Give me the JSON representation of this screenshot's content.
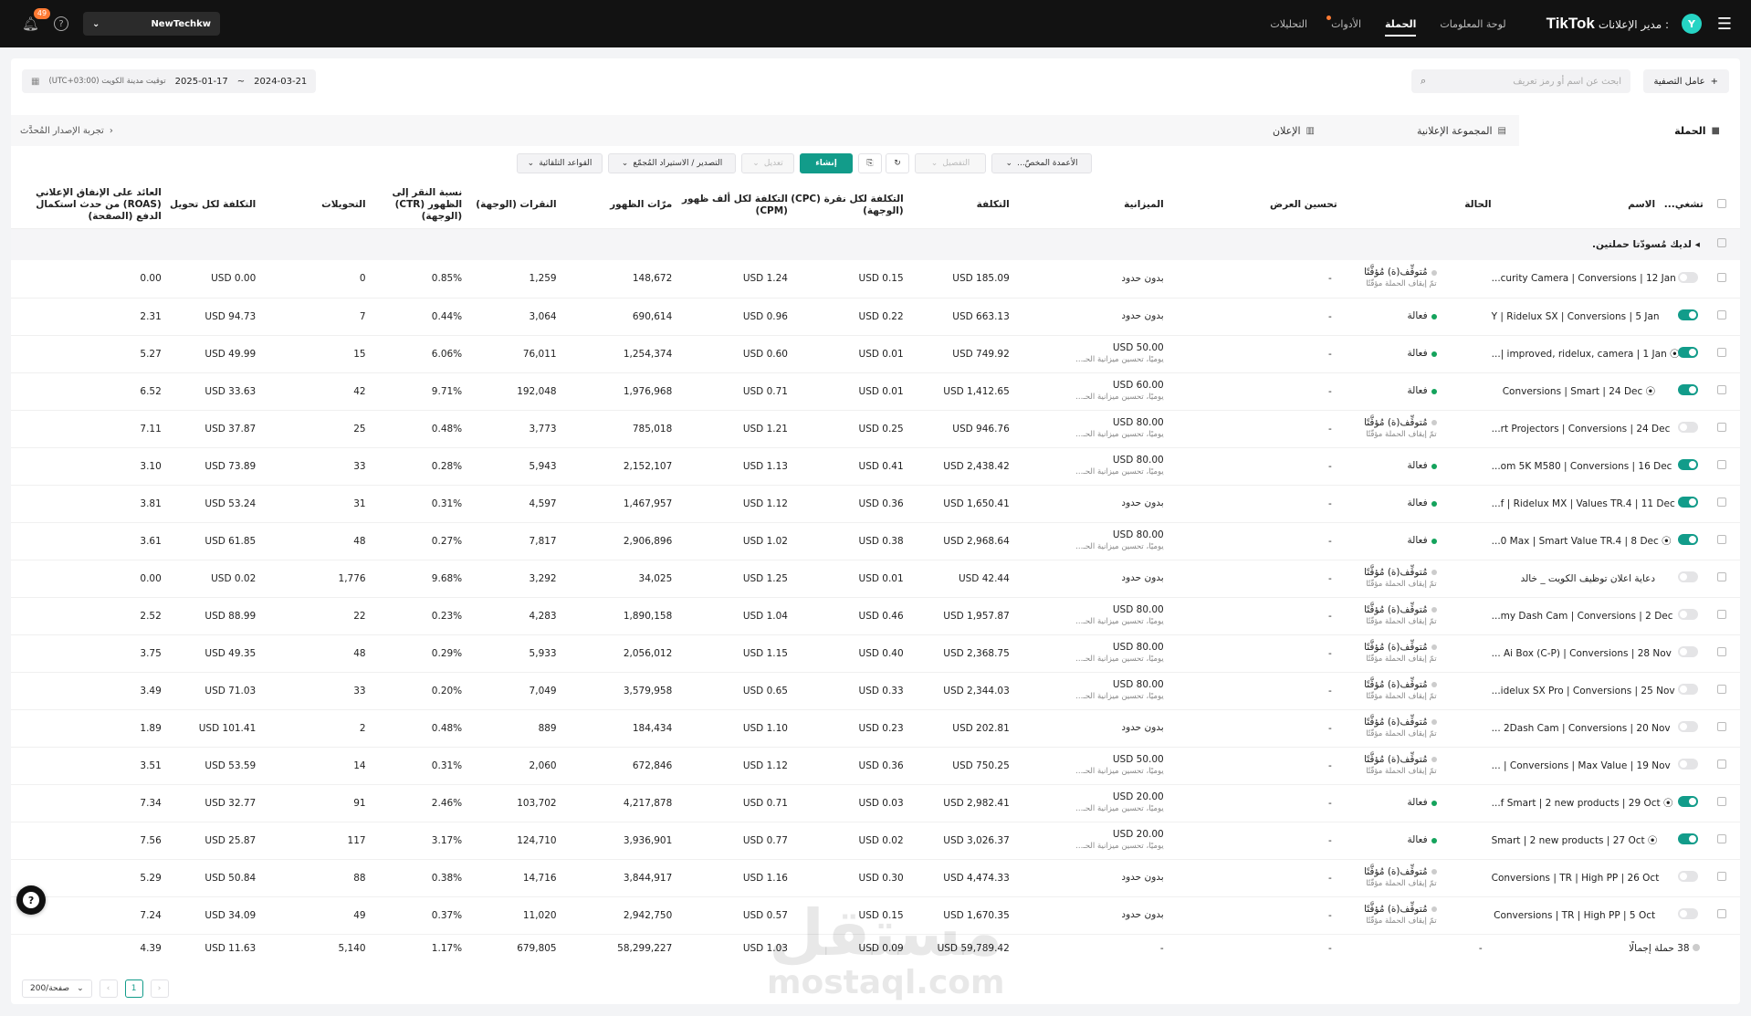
{
  "topbar": {
    "brand": "TikTok",
    "brand_sub": "مدير الإعلانات :",
    "avatar": "Y",
    "nav": [
      "لوحة المعلومات",
      "الحملة",
      "الأدوات",
      "التحليلات"
    ],
    "account": "NewTechkw",
    "notifications": "49"
  },
  "filters": {
    "filter_btn": "عامل التصفية",
    "search_placeholder": "ابحث عن اسم أو رمز تعريف",
    "date_start": "2024-03-21",
    "date_sep": "~",
    "date_end": "2025-01-17",
    "timezone": "(UTC+03:00) توقيت مدينة الكويت"
  },
  "tabs": [
    "الحملة",
    "المجموعة الإعلانية",
    "الإعلان"
  ],
  "version_link": "تجربة الإصدار المُحدَّث",
  "actions": {
    "create": "إنشاء",
    "edit": "تعديل",
    "details": "التفصيل",
    "columns": "الأعمدة المخصّ...",
    "export": "التصدير / الاستيراد المُجمّع",
    "rules": "القواعد التلقائية"
  },
  "columns": [
    "تشغي...",
    "الاسم",
    "الحالة",
    "تحسين العرض",
    "الميزانية",
    "التكلفة",
    "التكلفة لكل نقرة (CPC) (الوجهة)",
    "التكلفة لكل ألف ظهور (CPM)",
    "مرّات الظهور",
    "النقرات (الوجهة)",
    "نسبة النقر إلى الظهور (CTR) (الوجهة)",
    "التحويلات",
    "التكلفة لكل تحويل",
    "العائد على الإنفاق الإعلاني (ROAS) من حدث استكمال الدفع (الصفحة)"
  ],
  "draft_notice": "لديك مُسودّتا حملتين.",
  "status_labels": {
    "active": "فعالة",
    "paused": "مُتوقِّف(ة) مُؤقَّتًا",
    "paused_sub": "تمّ إيقاف الحملة مؤقّتًا"
  },
  "budget_sub": "يوميًا، تحسين ميزانية الحـ...",
  "rows": [
    {
      "name": "...curity Camera | Conversions | 12 Jan",
      "on": false,
      "status": "paused",
      "opt": "-",
      "budget": "بدون حدود",
      "budget_sub": "",
      "cost": "USD 185.09",
      "cpc": "USD 0.15",
      "cpm": "USD 1.24",
      "impr": "148,672",
      "clicks": "1,259",
      "ctr": "0.85%",
      "conv": "0",
      "cpa": "USD 0.00",
      "roas": "0.00"
    },
    {
      "name": "Y | Ridelux SX | Conversions | 5 Jan",
      "on": true,
      "status": "active",
      "opt": "-",
      "budget": "بدون حدود",
      "budget_sub": "",
      "cost": "USD 663.13",
      "cpc": "USD 0.22",
      "cpm": "USD 0.96",
      "impr": "690,614",
      "clicks": "3,064",
      "ctr": "0.44%",
      "conv": "7",
      "cpa": "USD 94.73",
      "roas": "2.31"
    },
    {
      "name": "...| improved, ridelux, camera | 1 Jan ⦿",
      "on": true,
      "status": "active",
      "opt": "-",
      "budget": "USD 50.00",
      "budget_sub": "يوميًا، تحسين ميزانية الحـ...",
      "cost": "USD 749.92",
      "cpc": "USD 0.01",
      "cpm": "USD 0.60",
      "impr": "1,254,374",
      "clicks": "76,011",
      "ctr": "6.06%",
      "conv": "15",
      "cpa": "USD 49.99",
      "roas": "5.27"
    },
    {
      "name": "Conversions | Smart | 24 Dec ⦿",
      "on": true,
      "status": "active",
      "opt": "-",
      "budget": "USD 60.00",
      "budget_sub": "يوميًا، تحسين ميزانية الحـ...",
      "cost": "USD 1,412.65",
      "cpc": "USD 0.01",
      "cpm": "USD 0.71",
      "impr": "1,976,968",
      "clicks": "192,048",
      "ctr": "9.71%",
      "conv": "42",
      "cpa": "USD 33.63",
      "roas": "6.52"
    },
    {
      "name": "...rt Projectors | Conversions | 24 Dec",
      "on": false,
      "status": "paused",
      "opt": "-",
      "budget": "USD 80.00",
      "budget_sub": "يوميًا، تحسين ميزانية الحـ...",
      "cost": "USD 946.76",
      "cpc": "USD 0.25",
      "cpm": "USD 1.21",
      "impr": "785,018",
      "clicks": "3,773",
      "ctr": "0.48%",
      "conv": "25",
      "cpa": "USD 37.87",
      "roas": "7.11"
    },
    {
      "name": "...om 5K M580 | Conversions | 16 Dec",
      "on": true,
      "status": "active",
      "opt": "-",
      "budget": "USD 80.00",
      "budget_sub": "يوميًا، تحسين ميزانية الحـ...",
      "cost": "USD 2,438.42",
      "cpc": "USD 0.41",
      "cpm": "USD 1.13",
      "impr": "2,152,107",
      "clicks": "5,943",
      "ctr": "0.28%",
      "conv": "33",
      "cpa": "USD 73.89",
      "roas": "3.10"
    },
    {
      "name": "...f | Ridelux MX | Values TR.4 | 11 Dec",
      "on": true,
      "status": "active",
      "opt": "-",
      "budget": "بدون حدود",
      "budget_sub": "",
      "cost": "USD 1,650.41",
      "cpc": "USD 0.36",
      "cpm": "USD 1.12",
      "impr": "1,467,957",
      "clicks": "4,597",
      "ctr": "0.31%",
      "conv": "31",
      "cpa": "USD 53.24",
      "roas": "3.81"
    },
    {
      "name": "...0 Max | Smart Value TR.4 | 8 Dec ⦿",
      "on": true,
      "status": "active",
      "opt": "-",
      "budget": "USD 80.00",
      "budget_sub": "يوميًا، تحسين ميزانية الحـ...",
      "cost": "USD 2,968.64",
      "cpc": "USD 0.38",
      "cpm": "USD 1.02",
      "impr": "2,906,896",
      "clicks": "7,817",
      "ctr": "0.27%",
      "conv": "48",
      "cpa": "USD 61.85",
      "roas": "3.61"
    },
    {
      "name": "دعاية اعلان توظيف الكويت _ خالد",
      "ar": true,
      "on": false,
      "status": "paused",
      "opt": "-",
      "budget": "بدون حدود",
      "budget_sub": "",
      "cost": "USD 42.44",
      "cpc": "USD 0.01",
      "cpm": "USD 1.25",
      "impr": "34,025",
      "clicks": "3,292",
      "ctr": "9.68%",
      "conv": "1,776",
      "cpa": "USD 0.02",
      "roas": "0.00"
    },
    {
      "name": "...my Dash Cam | Conversions | 2 Dec",
      "on": false,
      "status": "paused",
      "opt": "-",
      "budget": "USD 80.00",
      "budget_sub": "يوميًا، تحسين ميزانية الحـ...",
      "cost": "USD 1,957.87",
      "cpc": "USD 0.46",
      "cpm": "USD 1.04",
      "impr": "1,890,158",
      "clicks": "4,283",
      "ctr": "0.23%",
      "conv": "22",
      "cpa": "USD 88.99",
      "roas": "2.52"
    },
    {
      "name": "... Ai Box (C-P) | Conversions | 28 Nov",
      "on": false,
      "status": "paused",
      "opt": "-",
      "budget": "USD 80.00",
      "budget_sub": "يوميًا، تحسين ميزانية الحـ...",
      "cost": "USD 2,368.75",
      "cpc": "USD 0.40",
      "cpm": "USD 1.15",
      "impr": "2,056,012",
      "clicks": "5,933",
      "ctr": "0.29%",
      "conv": "48",
      "cpa": "USD 49.35",
      "roas": "3.75"
    },
    {
      "name": "...idelux SX Pro | Conversions | 25 Nov",
      "on": false,
      "status": "paused",
      "opt": "-",
      "budget": "USD 80.00",
      "budget_sub": "يوميًا، تحسين ميزانية الحـ...",
      "cost": "USD 2,344.03",
      "cpc": "USD 0.33",
      "cpm": "USD 0.65",
      "impr": "3,579,958",
      "clicks": "7,049",
      "ctr": "0.20%",
      "conv": "33",
      "cpa": "USD 71.03",
      "roas": "3.49"
    },
    {
      "name": "... 2Dash Cam | Conversions | 20 Nov",
      "on": false,
      "status": "paused",
      "opt": "-",
      "budget": "بدون حدود",
      "budget_sub": "",
      "cost": "USD 202.81",
      "cpc": "USD 0.23",
      "cpm": "USD 1.10",
      "impr": "184,434",
      "clicks": "889",
      "ctr": "0.48%",
      "conv": "2",
      "cpa": "USD 101.41",
      "roas": "1.89"
    },
    {
      "name": "... | Conversions | Max Value | 19 Nov",
      "on": false,
      "status": "paused",
      "opt": "-",
      "budget": "USD 50.00",
      "budget_sub": "يوميًا، تحسين ميزانية الحـ...",
      "cost": "USD 750.25",
      "cpc": "USD 0.36",
      "cpm": "USD 1.12",
      "impr": "672,846",
      "clicks": "2,060",
      "ctr": "0.31%",
      "conv": "14",
      "cpa": "USD 53.59",
      "roas": "3.51"
    },
    {
      "name": "...f Smart | 2 new products | 29 Oct ⦿",
      "on": true,
      "status": "active",
      "opt": "-",
      "budget": "USD 20.00",
      "budget_sub": "يوميًا، تحسين ميزانية الحـ...",
      "cost": "USD 2,982.41",
      "cpc": "USD 0.03",
      "cpm": "USD 0.71",
      "impr": "4,217,878",
      "clicks": "103,702",
      "ctr": "2.46%",
      "conv": "91",
      "cpa": "USD 32.77",
      "roas": "7.34"
    },
    {
      "name": "Smart | 2 new products | 27 Oct ⦿",
      "on": true,
      "status": "active",
      "opt": "-",
      "budget": "USD 20.00",
      "budget_sub": "يوميًا، تحسين ميزانية الحـ...",
      "cost": "USD 3,026.37",
      "cpc": "USD 0.02",
      "cpm": "USD 0.77",
      "impr": "3,936,901",
      "clicks": "124,710",
      "ctr": "3.17%",
      "conv": "117",
      "cpa": "USD 25.87",
      "roas": "7.56"
    },
    {
      "name": "Conversions | TR | High PP | 26 Oct",
      "on": false,
      "status": "paused",
      "opt": "-",
      "budget": "بدون حدود",
      "budget_sub": "",
      "cost": "USD 4,474.33",
      "cpc": "USD 0.30",
      "cpm": "USD 1.16",
      "impr": "3,844,917",
      "clicks": "14,716",
      "ctr": "0.38%",
      "conv": "88",
      "cpa": "USD 50.84",
      "roas": "5.29"
    },
    {
      "name": "Conversions | TR | High PP | 5 Oct",
      "on": false,
      "status": "paused",
      "opt": "-",
      "budget": "بدون حدود",
      "budget_sub": "",
      "cost": "USD 1,670.35",
      "cpc": "USD 0.15",
      "cpm": "USD 0.57",
      "impr": "2,942,750",
      "clicks": "11,020",
      "ctr": "0.37%",
      "conv": "49",
      "cpa": "USD 34.09",
      "roas": "7.24"
    }
  ],
  "total": {
    "label": "38 حملة إجمالًا",
    "status": "-",
    "opt": "-",
    "budget": "-",
    "cost": "USD 59,789.42",
    "cpc": "USD 0.09",
    "cpm": "USD 1.03",
    "impr": "58,299,227",
    "clicks": "679,805",
    "ctr": "1.17%",
    "conv": "5,140",
    "cpa": "USD 11.63",
    "roas": "4.39"
  },
  "pagination": {
    "page": "1",
    "size": "200/صفحة"
  },
  "watermark": {
    "line1": "مستقل",
    "line2": "mostaql.com"
  }
}
